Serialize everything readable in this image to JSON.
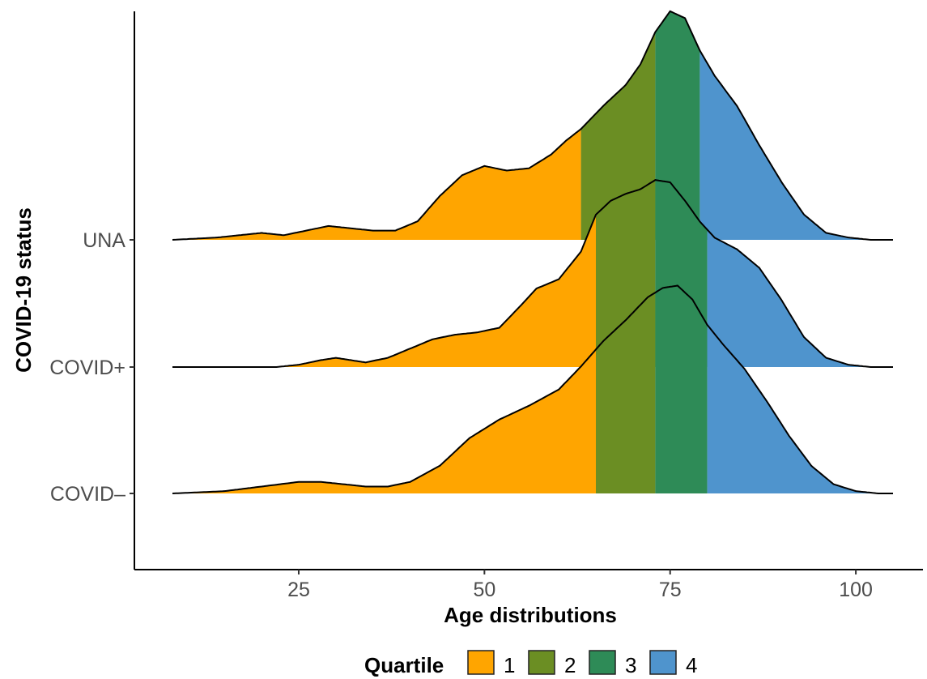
{
  "chart_data": {
    "type": "ridgeline",
    "title": "",
    "xlabel": "Age distributions",
    "ylabel": "COVID-19 status",
    "xlim": [
      8,
      105
    ],
    "x_ticks": [
      25,
      50,
      75,
      100
    ],
    "x_tick_labels": [
      "25",
      "50",
      "75",
      "100"
    ],
    "grid": false,
    "legend": {
      "title": "Quartile",
      "position": "bottom",
      "items": [
        {
          "label": "1",
          "color": "#FFA500"
        },
        {
          "label": "2",
          "color": "#6B8E23"
        },
        {
          "label": "3",
          "color": "#2E8B57"
        },
        {
          "label": "4",
          "color": "#4F94CD"
        }
      ]
    },
    "series": [
      {
        "name": "UNA",
        "quartile_cuts": [
          63,
          73,
          79
        ],
        "density_x": [
          8,
          14,
          17,
          20,
          23,
          26,
          29,
          32,
          35,
          38,
          41,
          44,
          47,
          50,
          53,
          56,
          59,
          61,
          63,
          66,
          69,
          71,
          73,
          75,
          77,
          79,
          81,
          84,
          87,
          90,
          93,
          96,
          99,
          102,
          105
        ],
        "density_y": [
          0,
          0.01,
          0.02,
          0.03,
          0.02,
          0.04,
          0.06,
          0.05,
          0.04,
          0.04,
          0.08,
          0.19,
          0.28,
          0.32,
          0.3,
          0.31,
          0.37,
          0.43,
          0.48,
          0.58,
          0.67,
          0.76,
          0.9,
          0.99,
          0.96,
          0.82,
          0.71,
          0.58,
          0.41,
          0.25,
          0.11,
          0.03,
          0.01,
          0,
          0
        ]
      },
      {
        "name": "COVID+",
        "quartile_cuts": [
          65,
          73,
          80
        ],
        "density_x": [
          8,
          22,
          25,
          28,
          30,
          32,
          34,
          37,
          40,
          43,
          46,
          49,
          52,
          55,
          57,
          60,
          63,
          65,
          67,
          69,
          71,
          73,
          75,
          77,
          79,
          81,
          84,
          87,
          90,
          93,
          96,
          99,
          102,
          105
        ],
        "density_y": [
          0,
          0,
          0.01,
          0.03,
          0.04,
          0.03,
          0.02,
          0.04,
          0.08,
          0.12,
          0.14,
          0.15,
          0.17,
          0.27,
          0.34,
          0.38,
          0.5,
          0.66,
          0.72,
          0.75,
          0.77,
          0.81,
          0.8,
          0.72,
          0.63,
          0.56,
          0.51,
          0.43,
          0.29,
          0.13,
          0.04,
          0.01,
          0,
          0
        ]
      },
      {
        "name": "COVID–",
        "quartile_cuts": [
          65,
          73,
          80
        ],
        "density_x": [
          8,
          15,
          20,
          25,
          28,
          31,
          34,
          37,
          40,
          44,
          48,
          52,
          56,
          60,
          63,
          66,
          69,
          72,
          74,
          76,
          78,
          80,
          82,
          85,
          88,
          91,
          94,
          97,
          100,
          103,
          105
        ],
        "density_y": [
          0,
          0.01,
          0.03,
          0.05,
          0.05,
          0.04,
          0.03,
          0.03,
          0.05,
          0.12,
          0.24,
          0.32,
          0.38,
          0.45,
          0.55,
          0.66,
          0.75,
          0.85,
          0.89,
          0.9,
          0.84,
          0.73,
          0.65,
          0.54,
          0.4,
          0.25,
          0.12,
          0.04,
          0.01,
          0,
          0
        ]
      }
    ]
  }
}
